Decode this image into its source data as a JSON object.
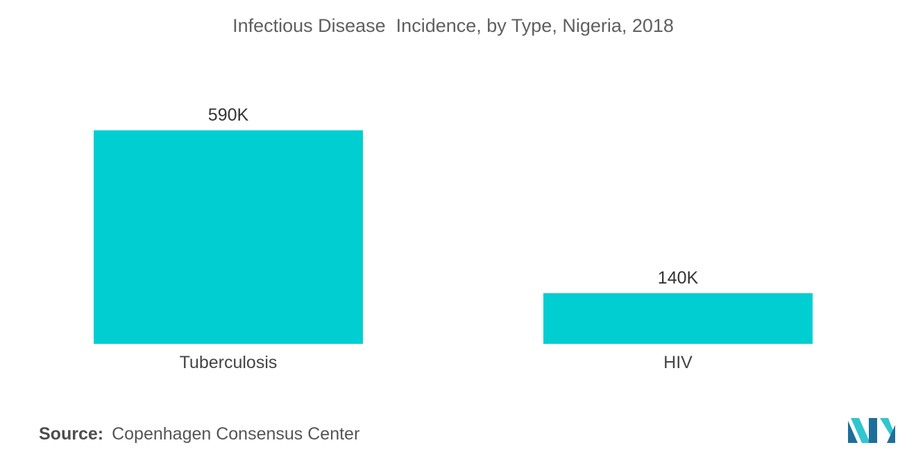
{
  "title": "Infectious Disease  Incidence, by Type, Nigeria, 2018",
  "source": {
    "label": "Source:",
    "value": "Copenhagen Consensus Center"
  },
  "colors": {
    "bar": "#00CED1",
    "logo_dark": "#1d6f9a",
    "logo_light": "#32c5cf"
  },
  "logo_icon": "mordor-intelligence-logo",
  "chart_data": {
    "type": "bar",
    "categories": [
      "Tuberculosis",
      "HIV"
    ],
    "values": [
      590000,
      140000
    ],
    "data_labels": [
      "590K",
      "140K"
    ],
    "title": "Infectious Disease  Incidence, by Type, Nigeria, 2018",
    "xlabel": "",
    "ylabel": "",
    "ylim": [
      0,
      590000
    ],
    "grid": false,
    "legend": "none"
  }
}
